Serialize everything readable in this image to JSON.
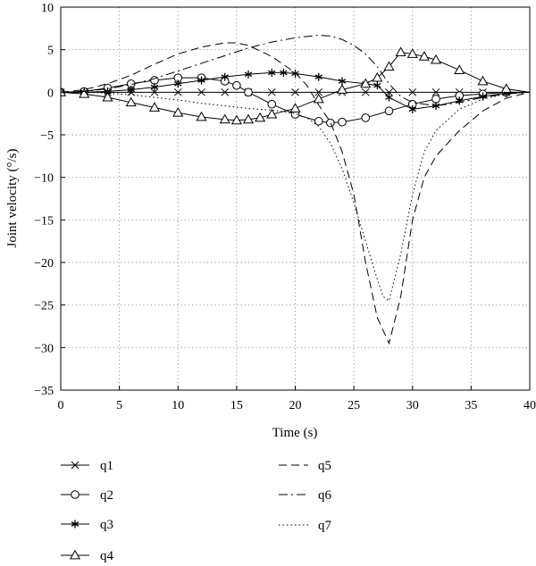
{
  "chart_data": {
    "type": "line",
    "xlabel": "Time (s)",
    "ylabel": "Joint velocity (°/s)",
    "xlim": [
      0,
      40
    ],
    "ylim": [
      -35,
      10
    ],
    "x_ticks": [
      0,
      5,
      10,
      15,
      20,
      25,
      30,
      35,
      40
    ],
    "y_ticks": [
      10,
      5,
      0,
      -5,
      -10,
      -15,
      -20,
      -25,
      -30,
      -35
    ],
    "x_tick_labels": [
      "0",
      "5",
      "10",
      "15",
      "20",
      "25",
      "30",
      "35",
      "40"
    ],
    "y_tick_labels": [
      "10",
      "5",
      "0",
      "−5",
      "−10",
      "−15",
      "−20",
      "−25",
      "−30",
      "−35"
    ],
    "grid": true,
    "legend_position": "below",
    "series": [
      {
        "name": "q1",
        "line": "solid",
        "marker": "x",
        "x": [
          0,
          2,
          4,
          6,
          8,
          10,
          12,
          14,
          16,
          18,
          20,
          22,
          24,
          26,
          28,
          30,
          32,
          34,
          36,
          38,
          40
        ],
        "y": [
          0,
          0,
          0,
          0,
          0,
          0,
          0,
          0,
          0,
          0,
          0,
          0,
          0,
          0,
          0,
          0,
          0,
          0,
          0,
          0,
          0
        ]
      },
      {
        "name": "q2",
        "line": "solid",
        "marker": "circle",
        "x": [
          0,
          2,
          4,
          6,
          8,
          10,
          12,
          14,
          15,
          16,
          18,
          20,
          22,
          23,
          24,
          26,
          28,
          30,
          32,
          34,
          36,
          38,
          40
        ],
        "y": [
          0,
          0.1,
          0.5,
          1.0,
          1.4,
          1.7,
          1.7,
          1.3,
          0.8,
          0,
          -1.4,
          -2.6,
          -3.4,
          -3.6,
          -3.5,
          -3.0,
          -2.2,
          -1.4,
          -0.8,
          -0.4,
          -0.2,
          0,
          0
        ]
      },
      {
        "name": "q3",
        "line": "solid",
        "marker": "star",
        "x": [
          0,
          2,
          4,
          6,
          8,
          10,
          12,
          14,
          16,
          18,
          19,
          20,
          22,
          24,
          26,
          27,
          28,
          30,
          32,
          34,
          36,
          38,
          40
        ],
        "y": [
          0,
          0,
          0.1,
          0.3,
          0.6,
          1.0,
          1.4,
          1.8,
          2.1,
          2.3,
          2.3,
          2.2,
          1.8,
          1.3,
          1.0,
          0.8,
          -0.6,
          -2.0,
          -1.6,
          -1.0,
          -0.5,
          -0.1,
          0
        ]
      },
      {
        "name": "q4",
        "line": "solid",
        "marker": "triangle",
        "x": [
          0,
          2,
          4,
          6,
          8,
          10,
          12,
          14,
          15,
          16,
          17,
          18,
          20,
          22,
          24,
          26,
          27,
          28,
          29,
          30,
          31,
          32,
          34,
          36,
          38,
          40
        ],
        "y": [
          0,
          -0.2,
          -0.6,
          -1.2,
          -1.8,
          -2.4,
          -2.9,
          -3.2,
          -3.3,
          -3.2,
          -3.0,
          -2.6,
          -1.9,
          -0.8,
          0.3,
          1.0,
          1.7,
          3.0,
          4.7,
          4.5,
          4.2,
          3.8,
          2.6,
          1.3,
          0.4,
          0
        ]
      },
      {
        "name": "q5",
        "line": "dash",
        "x": [
          0,
          2,
          4,
          6,
          8,
          10,
          12,
          14,
          15,
          16,
          18,
          20,
          21,
          22,
          23,
          24,
          25,
          26,
          27,
          28,
          29,
          30,
          31,
          32,
          34,
          36,
          38,
          40
        ],
        "y": [
          0,
          0.3,
          1.0,
          2.0,
          3.3,
          4.5,
          5.3,
          5.8,
          5.8,
          5.5,
          4.2,
          2.3,
          0.8,
          -1.5,
          -3.5,
          -7.0,
          -12.0,
          -20.0,
          -26.5,
          -29.5,
          -24.0,
          -15.0,
          -10.0,
          -7.5,
          -4.5,
          -2.2,
          -0.7,
          0
        ]
      },
      {
        "name": "q6",
        "line": "dashdot",
        "x": [
          0,
          2,
          4,
          6,
          8,
          10,
          12,
          14,
          16,
          18,
          20,
          22,
          23,
          24,
          25,
          26,
          27,
          28,
          29,
          30,
          32,
          34,
          36,
          38,
          40
        ],
        "y": [
          0,
          0.1,
          0.4,
          0.9,
          1.6,
          2.5,
          3.4,
          4.3,
          5.2,
          5.9,
          6.4,
          6.7,
          6.6,
          6.2,
          5.5,
          4.5,
          3.0,
          1.0,
          -0.5,
          -1.2,
          -1.6,
          -1.2,
          -0.6,
          -0.2,
          0
        ]
      },
      {
        "name": "q7",
        "line": "dot",
        "x": [
          0,
          2,
          4,
          6,
          8,
          10,
          12,
          14,
          16,
          18,
          20,
          21,
          22,
          23,
          24,
          25,
          26,
          27,
          27.5,
          28,
          29,
          30,
          31,
          32,
          34,
          36,
          38,
          40
        ],
        "y": [
          0,
          0,
          -0.1,
          -0.3,
          -0.6,
          -0.9,
          -1.3,
          -1.6,
          -1.9,
          -2.1,
          -2.5,
          -3.0,
          -4.0,
          -6.0,
          -9.0,
          -13.0,
          -17.5,
          -22.0,
          -24.0,
          -24.5,
          -19.0,
          -12.0,
          -7.0,
          -4.5,
          -2.0,
          -0.8,
          -0.2,
          0
        ]
      }
    ]
  }
}
